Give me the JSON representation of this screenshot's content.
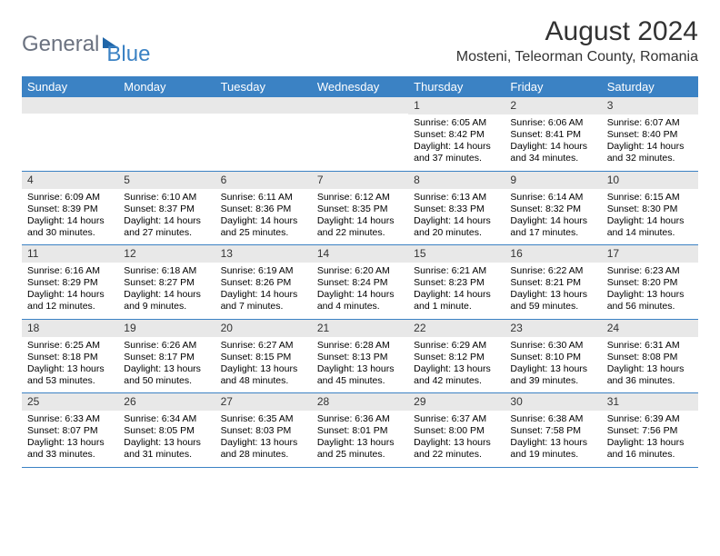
{
  "brand": {
    "part1": "General",
    "part2": "Blue"
  },
  "title": "August 2024",
  "location": "Mosteni, Teleorman County, Romania",
  "colors": {
    "header_bg": "#3b82c4",
    "header_text": "#ffffff",
    "daynum_bg": "#e8e8e8",
    "border": "#3b82c4",
    "logo_gray": "#6b7280",
    "logo_blue": "#3b82c4"
  },
  "day_names": [
    "Sunday",
    "Monday",
    "Tuesday",
    "Wednesday",
    "Thursday",
    "Friday",
    "Saturday"
  ],
  "weeks": [
    [
      {
        "n": null
      },
      {
        "n": null
      },
      {
        "n": null
      },
      {
        "n": null
      },
      {
        "n": "1",
        "sr": "Sunrise: 6:05 AM",
        "ss": "Sunset: 8:42 PM",
        "dl": "Daylight: 14 hours and 37 minutes."
      },
      {
        "n": "2",
        "sr": "Sunrise: 6:06 AM",
        "ss": "Sunset: 8:41 PM",
        "dl": "Daylight: 14 hours and 34 minutes."
      },
      {
        "n": "3",
        "sr": "Sunrise: 6:07 AM",
        "ss": "Sunset: 8:40 PM",
        "dl": "Daylight: 14 hours and 32 minutes."
      }
    ],
    [
      {
        "n": "4",
        "sr": "Sunrise: 6:09 AM",
        "ss": "Sunset: 8:39 PM",
        "dl": "Daylight: 14 hours and 30 minutes."
      },
      {
        "n": "5",
        "sr": "Sunrise: 6:10 AM",
        "ss": "Sunset: 8:37 PM",
        "dl": "Daylight: 14 hours and 27 minutes."
      },
      {
        "n": "6",
        "sr": "Sunrise: 6:11 AM",
        "ss": "Sunset: 8:36 PM",
        "dl": "Daylight: 14 hours and 25 minutes."
      },
      {
        "n": "7",
        "sr": "Sunrise: 6:12 AM",
        "ss": "Sunset: 8:35 PM",
        "dl": "Daylight: 14 hours and 22 minutes."
      },
      {
        "n": "8",
        "sr": "Sunrise: 6:13 AM",
        "ss": "Sunset: 8:33 PM",
        "dl": "Daylight: 14 hours and 20 minutes."
      },
      {
        "n": "9",
        "sr": "Sunrise: 6:14 AM",
        "ss": "Sunset: 8:32 PM",
        "dl": "Daylight: 14 hours and 17 minutes."
      },
      {
        "n": "10",
        "sr": "Sunrise: 6:15 AM",
        "ss": "Sunset: 8:30 PM",
        "dl": "Daylight: 14 hours and 14 minutes."
      }
    ],
    [
      {
        "n": "11",
        "sr": "Sunrise: 6:16 AM",
        "ss": "Sunset: 8:29 PM",
        "dl": "Daylight: 14 hours and 12 minutes."
      },
      {
        "n": "12",
        "sr": "Sunrise: 6:18 AM",
        "ss": "Sunset: 8:27 PM",
        "dl": "Daylight: 14 hours and 9 minutes."
      },
      {
        "n": "13",
        "sr": "Sunrise: 6:19 AM",
        "ss": "Sunset: 8:26 PM",
        "dl": "Daylight: 14 hours and 7 minutes."
      },
      {
        "n": "14",
        "sr": "Sunrise: 6:20 AM",
        "ss": "Sunset: 8:24 PM",
        "dl": "Daylight: 14 hours and 4 minutes."
      },
      {
        "n": "15",
        "sr": "Sunrise: 6:21 AM",
        "ss": "Sunset: 8:23 PM",
        "dl": "Daylight: 14 hours and 1 minute."
      },
      {
        "n": "16",
        "sr": "Sunrise: 6:22 AM",
        "ss": "Sunset: 8:21 PM",
        "dl": "Daylight: 13 hours and 59 minutes."
      },
      {
        "n": "17",
        "sr": "Sunrise: 6:23 AM",
        "ss": "Sunset: 8:20 PM",
        "dl": "Daylight: 13 hours and 56 minutes."
      }
    ],
    [
      {
        "n": "18",
        "sr": "Sunrise: 6:25 AM",
        "ss": "Sunset: 8:18 PM",
        "dl": "Daylight: 13 hours and 53 minutes."
      },
      {
        "n": "19",
        "sr": "Sunrise: 6:26 AM",
        "ss": "Sunset: 8:17 PM",
        "dl": "Daylight: 13 hours and 50 minutes."
      },
      {
        "n": "20",
        "sr": "Sunrise: 6:27 AM",
        "ss": "Sunset: 8:15 PM",
        "dl": "Daylight: 13 hours and 48 minutes."
      },
      {
        "n": "21",
        "sr": "Sunrise: 6:28 AM",
        "ss": "Sunset: 8:13 PM",
        "dl": "Daylight: 13 hours and 45 minutes."
      },
      {
        "n": "22",
        "sr": "Sunrise: 6:29 AM",
        "ss": "Sunset: 8:12 PM",
        "dl": "Daylight: 13 hours and 42 minutes."
      },
      {
        "n": "23",
        "sr": "Sunrise: 6:30 AM",
        "ss": "Sunset: 8:10 PM",
        "dl": "Daylight: 13 hours and 39 minutes."
      },
      {
        "n": "24",
        "sr": "Sunrise: 6:31 AM",
        "ss": "Sunset: 8:08 PM",
        "dl": "Daylight: 13 hours and 36 minutes."
      }
    ],
    [
      {
        "n": "25",
        "sr": "Sunrise: 6:33 AM",
        "ss": "Sunset: 8:07 PM",
        "dl": "Daylight: 13 hours and 33 minutes."
      },
      {
        "n": "26",
        "sr": "Sunrise: 6:34 AM",
        "ss": "Sunset: 8:05 PM",
        "dl": "Daylight: 13 hours and 31 minutes."
      },
      {
        "n": "27",
        "sr": "Sunrise: 6:35 AM",
        "ss": "Sunset: 8:03 PM",
        "dl": "Daylight: 13 hours and 28 minutes."
      },
      {
        "n": "28",
        "sr": "Sunrise: 6:36 AM",
        "ss": "Sunset: 8:01 PM",
        "dl": "Daylight: 13 hours and 25 minutes."
      },
      {
        "n": "29",
        "sr": "Sunrise: 6:37 AM",
        "ss": "Sunset: 8:00 PM",
        "dl": "Daylight: 13 hours and 22 minutes."
      },
      {
        "n": "30",
        "sr": "Sunrise: 6:38 AM",
        "ss": "Sunset: 7:58 PM",
        "dl": "Daylight: 13 hours and 19 minutes."
      },
      {
        "n": "31",
        "sr": "Sunrise: 6:39 AM",
        "ss": "Sunset: 7:56 PM",
        "dl": "Daylight: 13 hours and 16 minutes."
      }
    ]
  ]
}
